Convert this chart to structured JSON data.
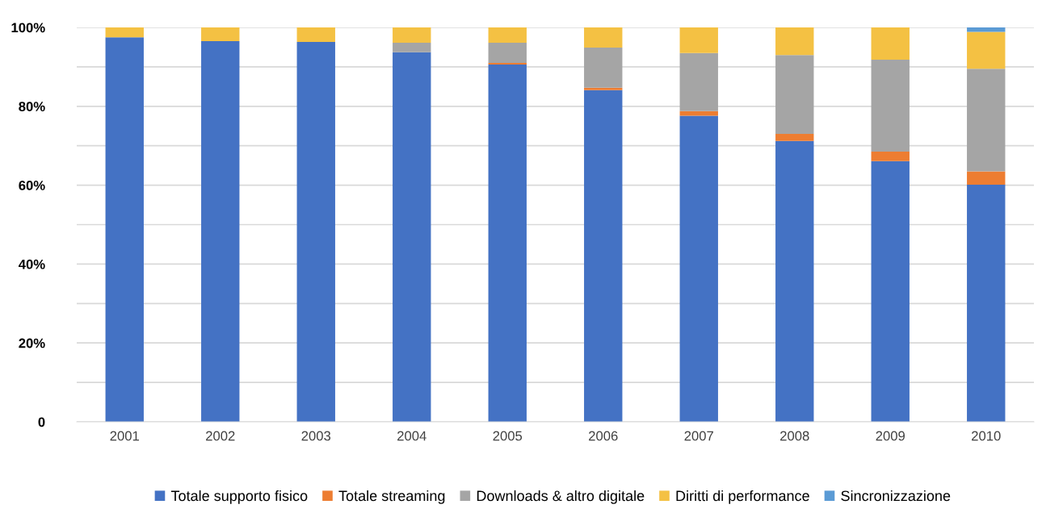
{
  "chart_data": {
    "type": "bar",
    "stacked": true,
    "categories": [
      "2001",
      "2002",
      "2003",
      "2004",
      "2005",
      "2006",
      "2007",
      "2008",
      "2009",
      "2010"
    ],
    "series": [
      {
        "name": "Totale supporto fisico",
        "color": "#4472c4",
        "values": [
          97.5,
          96.5,
          96.3,
          93.7,
          90.6,
          84.1,
          77.6,
          71.2,
          66.1,
          60.1
        ]
      },
      {
        "name": "Totale streaming",
        "color": "#ed7d31",
        "values": [
          0,
          0,
          0,
          0,
          0.4,
          0.6,
          1.2,
          1.8,
          2.4,
          3.4
        ]
      },
      {
        "name": "Downloads & altro digitale",
        "color": "#a5a5a5",
        "values": [
          0,
          0,
          0,
          2.4,
          5.1,
          10.2,
          14.7,
          20.0,
          23.3,
          26.0
        ]
      },
      {
        "name": "Diritti di performance",
        "color": "#f4c143",
        "values": [
          2.5,
          3.5,
          3.7,
          3.9,
          3.9,
          5.1,
          6.5,
          7.0,
          8.2,
          9.4
        ]
      },
      {
        "name": "Sincronizzazione",
        "color": "#5b9bd5",
        "values": [
          0,
          0,
          0,
          0,
          0,
          0,
          0,
          0,
          0,
          1.1
        ]
      }
    ],
    "ylim": [
      0,
      100
    ],
    "yticks": [
      {
        "value": 0,
        "label": "0"
      },
      {
        "value": 10,
        "label": null
      },
      {
        "value": 20,
        "label": "20%"
      },
      {
        "value": 30,
        "label": null
      },
      {
        "value": 40,
        "label": "40%"
      },
      {
        "value": 50,
        "label": null
      },
      {
        "value": 60,
        "label": "60%"
      },
      {
        "value": 70,
        "label": null
      },
      {
        "value": 80,
        "label": "80%"
      },
      {
        "value": 90,
        "label": null
      },
      {
        "value": 100,
        "label": "100%"
      }
    ],
    "grid": "y",
    "legend": "bottom"
  }
}
